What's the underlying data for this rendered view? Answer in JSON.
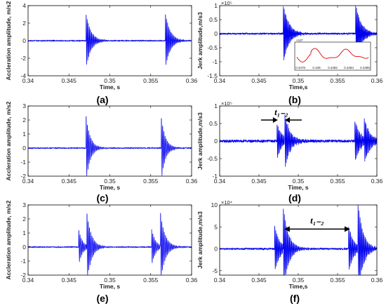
{
  "chart_data": [
    {
      "id": "a",
      "type": "line",
      "panel_label": "(a)",
      "xlabel": "Time, s",
      "ylabel": "Accleration amplitude, m/s2",
      "xlim": [
        0.34,
        0.36
      ],
      "ylim": [
        -4,
        4
      ],
      "xticks": [
        "0.34",
        "0.345",
        "0.35",
        "0.355",
        "0.36"
      ],
      "yticks": [
        "-4",
        "-2",
        "0",
        "2",
        "4"
      ],
      "exponent": "",
      "series": [
        {
          "color": "#0000ee",
          "bursts": [
            {
              "t0": 0.3471,
              "amp": 3.2,
              "decay": 1.7,
              "period": 0.00013
            },
            {
              "t0": 0.3568,
              "amp": 3.2,
              "decay": 1.7,
              "period": 0.00013
            }
          ],
          "noise": 0.05
        }
      ]
    },
    {
      "id": "b",
      "type": "line",
      "panel_label": "(b)",
      "xlabel": "Time,s",
      "ylabel": "Jerk amplitude,m/s3",
      "xlim": [
        0.34,
        0.36
      ],
      "ylim": [
        -1.5,
        1
      ],
      "xticks": [
        "0.34",
        "0.345",
        "0.35",
        "0.355",
        "0.36"
      ],
      "yticks": [
        "-1.5",
        "-1",
        "-0.5",
        "0",
        "0.5",
        "1"
      ],
      "exponent": "×10⁵",
      "series": [
        {
          "color": "#0000ee",
          "bursts": [
            {
              "t0": 0.3481,
              "amp": 1.05,
              "decay": 1.4,
              "period": 0.00011
            },
            {
              "t0": 0.3573,
              "amp": 1.1,
              "decay": 1.4,
              "period": 0.00011
            }
          ],
          "noise": 0.03
        }
      ],
      "inset": {
        "xticks": [
          "0.3478",
          "0.348",
          "0.3482",
          "0.3484",
          "0.3486"
        ],
        "exponent": "×10⁵",
        "color": "#dd0000"
      }
    },
    {
      "id": "c",
      "type": "line",
      "panel_label": "(c)",
      "xlabel": "Time, s",
      "ylabel": "Accleration amplitude, m/s2",
      "xlim": [
        0.34,
        0.36
      ],
      "ylim": [
        -2,
        3
      ],
      "xticks": [
        "0.34",
        "0.345",
        "0.35",
        "0.355",
        "0.36"
      ],
      "yticks": [
        "-2",
        "-1",
        "0",
        "1",
        "2",
        "3"
      ],
      "exponent": "",
      "series": [
        {
          "color": "#0000ee",
          "bursts": [
            {
              "t0": 0.3471,
              "amp": 2.4,
              "decay": 2.0,
              "period": 0.00015
            },
            {
              "t0": 0.3563,
              "amp": 2.3,
              "decay": 2.0,
              "period": 0.00015
            }
          ],
          "noise": 0.03
        }
      ]
    },
    {
      "id": "d",
      "type": "line",
      "panel_label": "(d)",
      "xlabel": "Time, s",
      "ylabel": "Jerk amplitude,m/s3",
      "xlim": [
        0.34,
        0.36
      ],
      "ylim": [
        -1,
        1
      ],
      "xticks": [
        "0.34",
        "0.345",
        "0.35",
        "0.355",
        "0.36"
      ],
      "yticks": [
        "-1",
        "-0.5",
        "0",
        "0.5",
        "1"
      ],
      "exponent": "×10⁵",
      "series": [
        {
          "color": "#0000ee",
          "bursts": [
            {
              "t0": 0.3473,
              "amp": 0.5,
              "decay": 1.5,
              "period": 0.00012
            },
            {
              "t0": 0.3483,
              "amp": 0.85,
              "decay": 1.5,
              "period": 0.00012
            },
            {
              "t0": 0.3572,
              "amp": 0.6,
              "decay": 1.4,
              "period": 0.00012
            },
            {
              "t0": 0.3584,
              "amp": 0.55,
              "decay": 1.4,
              "period": 0.00012
            }
          ],
          "noise": 0.04
        }
      ],
      "annotation": {
        "label": "t₁₋₂",
        "x1": 0.3474,
        "x2": 0.3483,
        "y": 0.6
      }
    },
    {
      "id": "e",
      "type": "line",
      "panel_label": "(e)",
      "xlabel": "Time, s",
      "ylabel": "Accleration amplitude, m/s2",
      "xlim": [
        0.34,
        0.36
      ],
      "ylim": [
        -2,
        3
      ],
      "xticks": [
        "0.34",
        "0.345",
        "0.35",
        "0.355",
        "0.36"
      ],
      "yticks": [
        "-2",
        "-1",
        "0",
        "1",
        "2",
        "3"
      ],
      "exponent": "",
      "series": [
        {
          "color": "#0000ee",
          "bursts": [
            {
              "t0": 0.3462,
              "amp": 1.3,
              "decay": 2.2,
              "period": 0.00015
            },
            {
              "t0": 0.3472,
              "amp": 2.6,
              "decay": 1.8,
              "period": 0.00015
            },
            {
              "t0": 0.3551,
              "amp": 1.4,
              "decay": 2.2,
              "period": 0.00015
            },
            {
              "t0": 0.3562,
              "amp": 2.6,
              "decay": 1.8,
              "period": 0.00015
            }
          ],
          "noise": 0.03
        }
      ]
    },
    {
      "id": "f",
      "type": "line",
      "panel_label": "(f)",
      "xlabel": "Time,s",
      "ylabel": "Jerk amplitude,m/s3",
      "xlim": [
        0.34,
        0.36
      ],
      "ylim": [
        -6,
        10
      ],
      "xticks": [
        "0.34",
        "0.345",
        "0.35",
        "0.355",
        "0.36"
      ],
      "yticks": [
        "-5",
        "0",
        "5",
        "10"
      ],
      "exponent": "×10⁴",
      "series": [
        {
          "color": "#0000ee",
          "bursts": [
            {
              "t0": 0.347,
              "amp": 5.5,
              "decay": 1.6,
              "period": 0.00013
            },
            {
              "t0": 0.3481,
              "amp": 10.5,
              "decay": 1.5,
              "period": 0.00013
            },
            {
              "t0": 0.3564,
              "amp": 5.5,
              "decay": 1.6,
              "period": 0.00013
            },
            {
              "t0": 0.3576,
              "amp": 10.5,
              "decay": 1.5,
              "period": 0.00013
            }
          ],
          "noise": 0.2
        }
      ],
      "annotation": {
        "label": "t₁₋₂",
        "x1": 0.3482,
        "x2": 0.3566,
        "y": 4.5
      }
    }
  ]
}
